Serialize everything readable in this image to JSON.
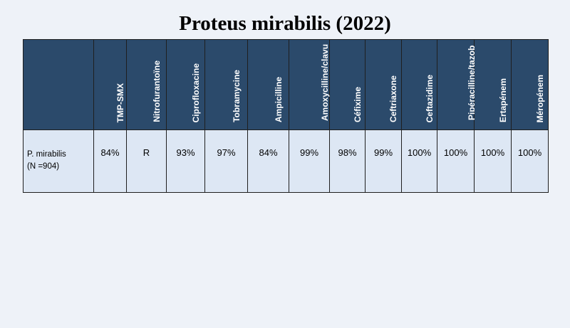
{
  "title": "Proteus mirabilis (2022)",
  "table": {
    "columns": [
      "TMP-SMX",
      "Nitrofurantoïne",
      "Ciprofloxacine",
      "Tobramycine",
      "Ampicilline",
      "Amoxycilline/clavu -lanate",
      "Céfixime",
      "Ceftriaxone",
      "Ceftazidime",
      "Pipéracilline/tazob actam",
      "Ertapénem",
      "Méropénem"
    ],
    "rows": [
      {
        "organism": "P. mirabilis",
        "count": "(N =904)",
        "values": [
          "84%",
          "R",
          "93%",
          "97%",
          "84%",
          "99%",
          "98%",
          "99%",
          "100%",
          "100%",
          "100%",
          "100%"
        ]
      }
    ]
  }
}
